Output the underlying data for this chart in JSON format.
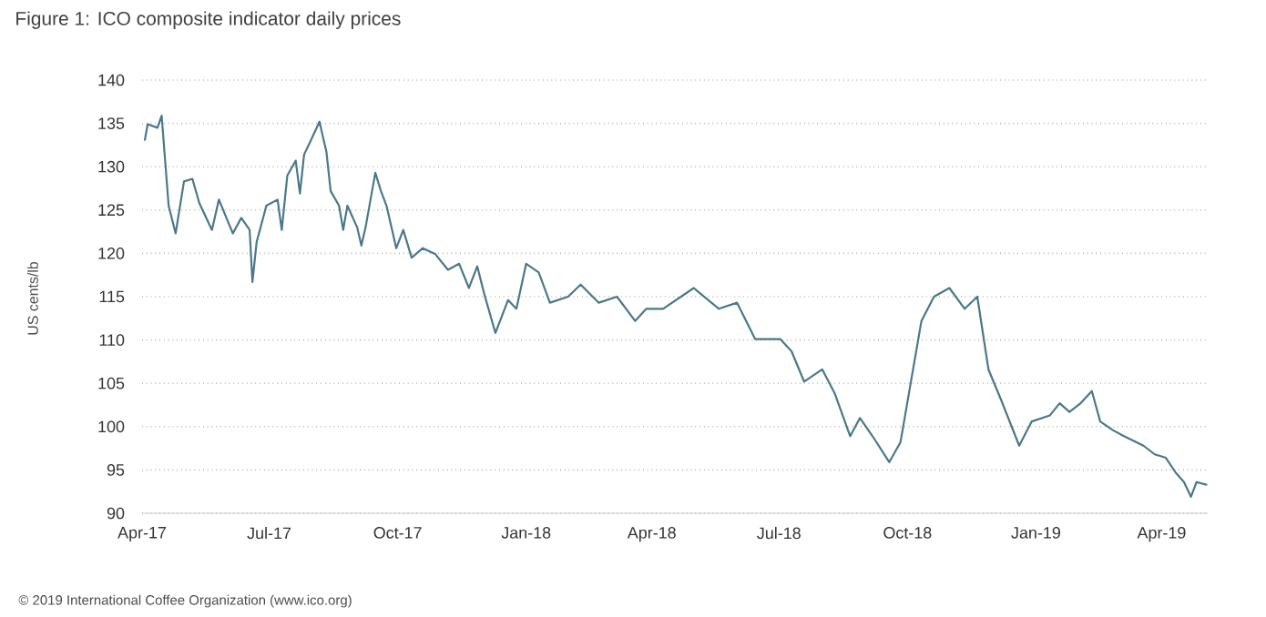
{
  "chart_data": {
    "type": "line",
    "title": "Figure 1: ICO composite indicator daily prices",
    "ylabel": "US cents/lb",
    "annotations": [
      "© 2019 International Coffee Organization (www.ico.org)"
    ],
    "grid": "y",
    "xlim": [
      "2017-04-01",
      "2019-05-04"
    ],
    "ylim": [
      90,
      140
    ],
    "yticks": [
      90,
      95,
      100,
      105,
      110,
      115,
      120,
      125,
      130,
      135,
      140
    ],
    "xticks": [
      {
        "value": "2017-04-01",
        "label": "Apr-17"
      },
      {
        "value": "2017-07-01",
        "label": "Jul-17"
      },
      {
        "value": "2017-10-01",
        "label": "Oct-17"
      },
      {
        "value": "2018-01-01",
        "label": "Jan-18"
      },
      {
        "value": "2018-04-01",
        "label": "Apr-18"
      },
      {
        "value": "2018-07-01",
        "label": "Jul-18"
      },
      {
        "value": "2018-10-01",
        "label": "Oct-18"
      },
      {
        "value": "2019-01-01",
        "label": "Jan-19"
      },
      {
        "value": "2019-04-01",
        "label": "Apr-19"
      }
    ],
    "series": [
      {
        "color": "#4a7889",
        "x": [
          "2017-04-03",
          "2017-04-05",
          "2017-04-12",
          "2017-04-15",
          "2017-04-20",
          "2017-04-25",
          "2017-05-01",
          "2017-05-07",
          "2017-05-12",
          "2017-05-21",
          "2017-05-26",
          "2017-06-05",
          "2017-06-11",
          "2017-06-17",
          "2017-06-19",
          "2017-06-22",
          "2017-06-29",
          "2017-07-07",
          "2017-07-10",
          "2017-07-14",
          "2017-07-20",
          "2017-07-23",
          "2017-07-26",
          "2017-07-31",
          "2017-08-06",
          "2017-08-11",
          "2017-08-14",
          "2017-08-20",
          "2017-08-23",
          "2017-08-26",
          "2017-09-02",
          "2017-09-05",
          "2017-09-08",
          "2017-09-15",
          "2017-09-19",
          "2017-09-23",
          "2017-09-30",
          "2017-10-05",
          "2017-10-11",
          "2017-10-19",
          "2017-10-28",
          "2017-11-06",
          "2017-11-14",
          "2017-11-21",
          "2017-11-27",
          "2017-12-02",
          "2017-12-10",
          "2017-12-19",
          "2017-12-25",
          "2018-01-01",
          "2018-01-10",
          "2018-01-18",
          "2018-01-31",
          "2018-02-09",
          "2018-02-22",
          "2018-03-07",
          "2018-03-20",
          "2018-03-28",
          "2018-04-09",
          "2018-05-01",
          "2018-05-19",
          "2018-06-01",
          "2018-06-14",
          "2018-07-02",
          "2018-07-10",
          "2018-07-19",
          "2018-08-01",
          "2018-08-10",
          "2018-08-21",
          "2018-08-28",
          "2018-09-06",
          "2018-09-18",
          "2018-09-26",
          "2018-10-02",
          "2018-10-11",
          "2018-10-20",
          "2018-10-31",
          "2018-11-11",
          "2018-11-20",
          "2018-11-28",
          "2018-12-07",
          "2018-12-20",
          "2018-12-29",
          "2019-01-11",
          "2019-01-18",
          "2019-01-25",
          "2019-02-02",
          "2019-02-10",
          "2019-02-16",
          "2019-02-25",
          "2019-03-05",
          "2019-03-19",
          "2019-03-27",
          "2019-04-04",
          "2019-04-11",
          "2019-04-17",
          "2019-04-22",
          "2019-04-26",
          "2019-05-03"
        ],
        "values": [
          133.1,
          134.9,
          134.5,
          135.9,
          125.5,
          122.3,
          128.3,
          128.6,
          125.8,
          122.7,
          126.2,
          122.3,
          124.1,
          122.7,
          116.7,
          121.3,
          125.5,
          126.2,
          122.7,
          129.0,
          130.7,
          126.9,
          131.4,
          133.1,
          135.2,
          131.7,
          127.2,
          125.5,
          122.7,
          125.5,
          123.0,
          120.9,
          123.0,
          129.3,
          127.2,
          125.5,
          120.6,
          122.7,
          119.5,
          120.6,
          119.9,
          118.1,
          118.8,
          116.0,
          118.5,
          115.3,
          110.8,
          114.6,
          113.6,
          118.8,
          117.8,
          114.3,
          115.0,
          116.4,
          114.3,
          115.0,
          112.2,
          113.6,
          113.6,
          116.0,
          113.6,
          114.3,
          110.1,
          110.1,
          108.7,
          105.2,
          106.6,
          103.8,
          98.9,
          101.0,
          98.9,
          95.9,
          98.2,
          103.8,
          112.2,
          115.0,
          116.0,
          113.6,
          115.0,
          106.6,
          103.1,
          97.8,
          100.6,
          101.3,
          102.7,
          101.7,
          102.7,
          104.1,
          100.6,
          99.6,
          98.9,
          97.8,
          96.8,
          96.4,
          94.7,
          93.6,
          91.9,
          93.6,
          93.3
        ]
      }
    ]
  }
}
